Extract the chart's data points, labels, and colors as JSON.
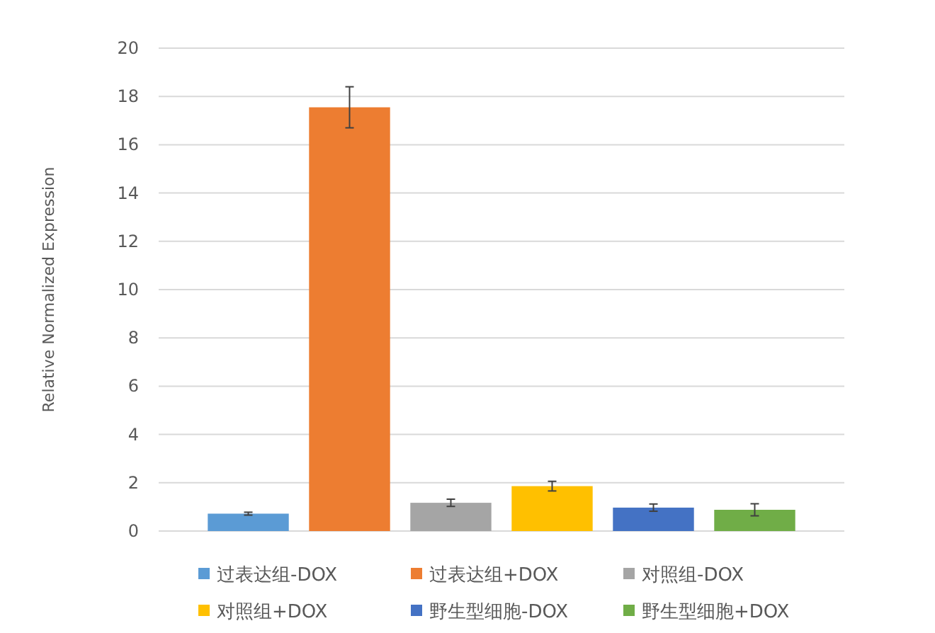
{
  "chart_data": {
    "type": "bar",
    "ylabel": "Relative Normalized Expression",
    "categories": [
      null
    ],
    "ylim": [
      0,
      20
    ],
    "yticks": [
      0,
      2,
      4,
      6,
      8,
      10,
      12,
      14,
      16,
      18,
      20
    ],
    "grid": "y",
    "legend": "bottom",
    "series": [
      {
        "name": "过表达组-DOX",
        "color": "#5b9bd5",
        "values": [
          0.72
        ],
        "errors": [
          0.06
        ]
      },
      {
        "name": "过表达组+DOX",
        "color": "#ed7d31",
        "values": [
          17.55
        ],
        "errors": [
          0.85
        ]
      },
      {
        "name": "对照组-DOX",
        "color": "#a5a5a5",
        "values": [
          1.17
        ],
        "errors": [
          0.15
        ]
      },
      {
        "name": "对照组+DOX",
        "color": "#ffc000",
        "values": [
          1.86
        ],
        "errors": [
          0.2
        ]
      },
      {
        "name": "野生型细胞-DOX",
        "color": "#4472c4",
        "values": [
          0.97
        ],
        "errors": [
          0.15
        ]
      },
      {
        "name": "野生型细胞+DOX",
        "color": "#70ad47",
        "values": [
          0.88
        ],
        "errors": [
          0.25
        ]
      }
    ]
  }
}
